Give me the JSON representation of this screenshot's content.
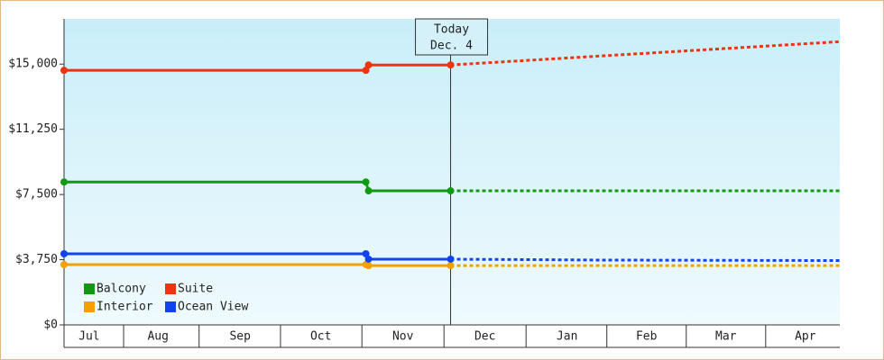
{
  "chart_data": {
    "type": "line",
    "xlim": [
      0,
      293
    ],
    "xticks": [
      {
        "value": 9.5,
        "label": "Jul"
      },
      {
        "value": 35.5,
        "label": "Aug"
      },
      {
        "value": 66.5,
        "label": "Sep"
      },
      {
        "value": 97,
        "label": "Oct"
      },
      {
        "value": 128,
        "label": "Nov"
      },
      {
        "value": 159,
        "label": "Dec"
      },
      {
        "value": 190,
        "label": "Jan"
      },
      {
        "value": 220,
        "label": "Feb"
      },
      {
        "value": 250,
        "label": "Mar"
      },
      {
        "value": 280,
        "label": "Apr"
      }
    ],
    "ylim": [
      0,
      17600
    ],
    "yticks": [
      {
        "value": 0,
        "label": "$0"
      },
      {
        "value": 3750,
        "label": "$3,750"
      },
      {
        "value": 7500,
        "label": "$7,500"
      },
      {
        "value": 11250,
        "label": "$11,250"
      },
      {
        "value": 15000,
        "label": "$15,000"
      }
    ],
    "annotation": {
      "x": 146,
      "lines": [
        "Today",
        "Dec. 4"
      ]
    },
    "legend": "bottom-left",
    "series": [
      {
        "name": "Balcony",
        "color": "#119911",
        "x": [
          0,
          114,
          115,
          146
        ],
        "values": [
          8220,
          8220,
          7710,
          7710
        ],
        "forecast_x": [
          146,
          293
        ],
        "forecast": [
          7710,
          7710
        ]
      },
      {
        "name": "Suite",
        "color": "#ee3311",
        "x": [
          0,
          114,
          115,
          146
        ],
        "values": [
          14640,
          14640,
          14950,
          14950
        ],
        "forecast_x": [
          146,
          293
        ],
        "forecast": [
          14950,
          16290
        ]
      },
      {
        "name": "Interior",
        "color": "#f5a000",
        "x": [
          0,
          114,
          115,
          146
        ],
        "values": [
          3470,
          3470,
          3410,
          3410
        ],
        "forecast_x": [
          146,
          293
        ],
        "forecast": [
          3410,
          3410
        ]
      },
      {
        "name": "Ocean View",
        "color": "#1144ee",
        "x": [
          0,
          114,
          115,
          146
        ],
        "values": [
          4090,
          4090,
          3780,
          3780
        ],
        "forecast_x": [
          146,
          200,
          293
        ],
        "forecast": [
          3780,
          3730,
          3700
        ]
      }
    ]
  }
}
